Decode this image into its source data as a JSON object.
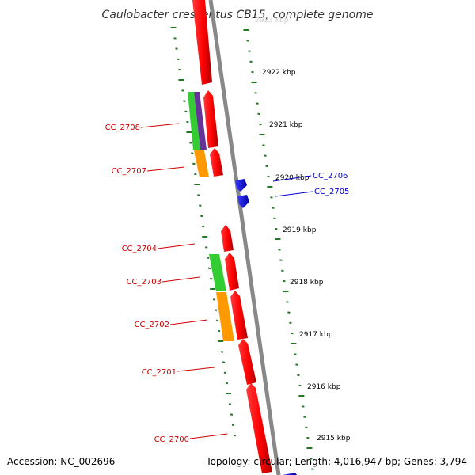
{
  "title": "Caulobacter crescentus CB15, complete genome",
  "watermark": "2923 kbp",
  "footer": {
    "accession": "Accession: NC_002696",
    "topology": "Topology: circular; Length: 4,016,947 bp; Genes: 3,794"
  },
  "colors": {
    "reverse_cds": "#ff0000",
    "forward_cds": "#0000ff",
    "orf_green": "#33cc33",
    "orf_orange": "#ff9900",
    "orf_purple": "#663399",
    "backbone": "#888888",
    "tick": "#227722",
    "reverse_label": "#cc0000",
    "forward_label": "#0000cc"
  },
  "ruler_labels": [
    "2922 kbp",
    "2921 kbp",
    "2920 kbp",
    "2919 kbp",
    "2918 kbp",
    "2917 kbp",
    "2916 kbp",
    "2915 kbp"
  ],
  "reverse_genes": [
    "CC_2708",
    "CC_2707",
    "CC_2704",
    "CC_2703",
    "CC_2702",
    "CC_2701",
    "CC_2700"
  ],
  "forward_genes": [
    "CC_2706",
    "CC_2705"
  ]
}
